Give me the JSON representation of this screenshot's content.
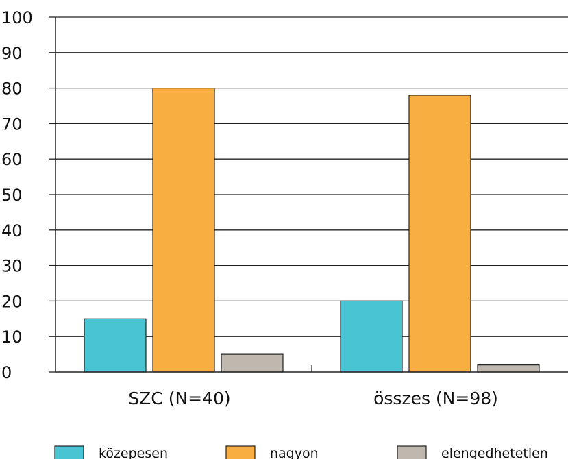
{
  "chart_data": {
    "type": "bar",
    "categories": [
      "SZC (N=40)",
      "összes (N=98)"
    ],
    "series": [
      {
        "name": "közepesen",
        "values": [
          15,
          20
        ],
        "color": "#48c4d2"
      },
      {
        "name": "nagyon",
        "values": [
          80,
          78
        ],
        "color": "#f9ae41"
      },
      {
        "name": "elengedhetetlen",
        "values": [
          5,
          2
        ],
        "color": "#bfb8ae"
      }
    ],
    "ylim": [
      0,
      100
    ],
    "yticks": [
      0,
      10,
      20,
      30,
      40,
      50,
      60,
      70,
      80,
      90,
      100
    ],
    "grid": true,
    "legend_position": "bottom"
  }
}
